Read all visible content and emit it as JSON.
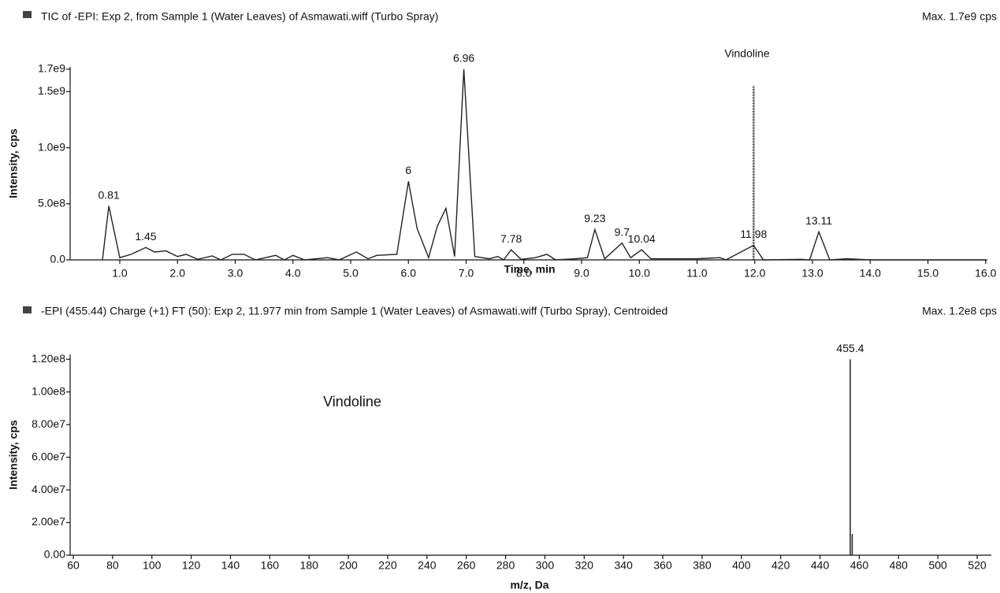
{
  "chart_data": [
    {
      "type": "line",
      "title": "TIC of -EPI: Exp 2, from Sample 1 (Water Leaves) of Asmawati.wiff (Turbo Spray)",
      "max_label": "Max. 1.7e9 cps",
      "y_label": "Intensity, cps",
      "x_label": "Time, min",
      "color": "#222222",
      "x": [
        0.7,
        0.81,
        1.0,
        1.2,
        1.45,
        1.6,
        1.8,
        2.0,
        2.15,
        2.35,
        2.6,
        2.75,
        2.95,
        3.15,
        3.35,
        3.7,
        3.85,
        4.0,
        4.2,
        4.6,
        4.8,
        5.1,
        5.3,
        5.45,
        5.8,
        6.0,
        6.15,
        6.35,
        6.5,
        6.65,
        6.8,
        6.96,
        7.15,
        7.4,
        7.55,
        7.65,
        7.78,
        7.95,
        8.2,
        8.4,
        8.55,
        8.9,
        9.1,
        9.23,
        9.4,
        9.7,
        9.85,
        10.04,
        10.2,
        10.5,
        11.0,
        11.4,
        11.5,
        11.98,
        12.15,
        12.8,
        12.95,
        13.11,
        13.3,
        13.6,
        14.0,
        16.0
      ],
      "values": [
        0,
        480000000,
        20000000,
        50000000,
        110000000,
        70000000,
        80000000,
        30000000,
        50000000,
        5000000,
        35000000,
        0,
        50000000,
        50000000,
        0,
        40000000,
        0,
        40000000,
        0,
        20000000,
        0,
        70000000,
        10000000,
        40000000,
        50000000,
        700000000,
        280000000,
        20000000,
        300000000,
        460000000,
        30000000,
        1700000000,
        30000000,
        10000000,
        30000000,
        0,
        90000000,
        5000000,
        20000000,
        50000000,
        0,
        10000000,
        20000000,
        270000000,
        10000000,
        150000000,
        20000000,
        90000000,
        10000000,
        10000000,
        10000000,
        20000000,
        0,
        130000000,
        0,
        5000000,
        0,
        250000000,
        0,
        10000000,
        0,
        0
      ],
      "peak_labels": [
        0.81,
        1.45,
        6.0,
        6.96,
        7.78,
        9.23,
        9.7,
        10.04,
        11.98,
        13.11
      ],
      "annotation": {
        "text": "Vindoline",
        "x": 11.98,
        "y": 1550000000
      },
      "xlim": [
        0.14,
        16.03
      ],
      "ylim": [
        0,
        1720000000
      ],
      "xticks": [
        {
          "value": 1,
          "label": "1.0"
        },
        {
          "value": 2,
          "label": "2.0"
        },
        {
          "value": 3,
          "label": "3.0"
        },
        {
          "value": 4,
          "label": "4.0"
        },
        {
          "value": 5,
          "label": "5.0"
        },
        {
          "value": 6,
          "label": "6.0"
        },
        {
          "value": 7,
          "label": "7.0"
        },
        {
          "value": 8,
          "label": "8.0"
        },
        {
          "value": 9,
          "label": "9.0"
        },
        {
          "value": 10,
          "label": "10.0"
        },
        {
          "value": 11,
          "label": "11.0"
        },
        {
          "value": 12,
          "label": "12.0"
        },
        {
          "value": 13,
          "label": "13.0"
        },
        {
          "value": 14,
          "label": "14.0"
        },
        {
          "value": 15,
          "label": "15.0"
        },
        {
          "value": 16,
          "label": "16.0"
        }
      ],
      "yticks": [
        {
          "value": 0,
          "label": "0.0"
        },
        {
          "value": 500000000,
          "label": "5.0e8"
        },
        {
          "value": 1000000000,
          "label": "1.0e9"
        },
        {
          "value": 1500000000,
          "label": "1.5e9"
        },
        {
          "value": 1700000000,
          "label": "1.7e9"
        }
      ]
    },
    {
      "type": "spectrum",
      "title": "-EPI (455.44) Charge (+1) FT (50): Exp 2, 11.977 min from Sample 1 (Water Leaves) of Asmawati.wiff (Turbo Spray), Centroided",
      "max_label": "Max. 1.2e8 cps",
      "y_label": "Intensity, cps",
      "x_label": "m/z, Da",
      "color": "#222222",
      "x": [
        455.4,
        456.4
      ],
      "values": [
        120000000,
        13000000
      ],
      "peak_labels": [
        455.4
      ],
      "annotation": {
        "text": "Vindoline"
      },
      "xlim": [
        58.4,
        527.2
      ],
      "ylim": [
        0,
        123000000
      ],
      "xticks": [
        60,
        80,
        100,
        120,
        140,
        160,
        180,
        200,
        220,
        240,
        260,
        280,
        300,
        320,
        340,
        360,
        380,
        400,
        420,
        440,
        460,
        480,
        500,
        520
      ],
      "yticks": [
        {
          "value": 0,
          "label": "0.00"
        },
        {
          "value": 20000000,
          "label": "2.00e7"
        },
        {
          "value": 40000000,
          "label": "4.00e7"
        },
        {
          "value": 60000000,
          "label": "6.00e7"
        },
        {
          "value": 80000000,
          "label": "8.00e7"
        },
        {
          "value": 100000000,
          "label": "1.00e8"
        },
        {
          "value": 120000000,
          "label": "1.20e8"
        }
      ]
    }
  ]
}
